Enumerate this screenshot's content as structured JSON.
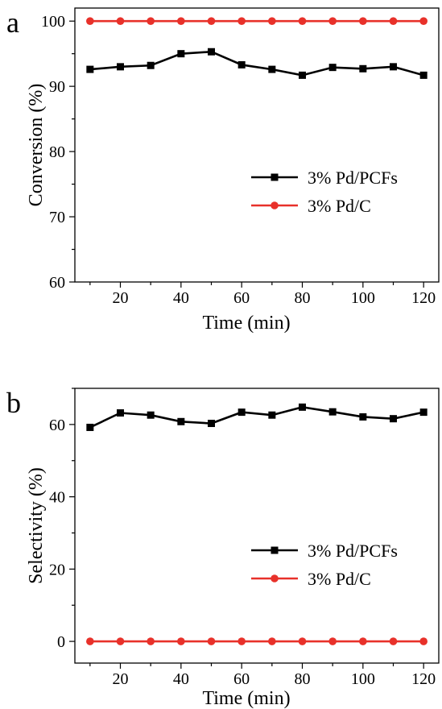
{
  "chart_data": [
    {
      "panel": "a",
      "type": "line",
      "xlabel": "Time (min)",
      "ylabel": "Conversion (%)",
      "xlim": [
        5,
        125
      ],
      "ylim": [
        60,
        102
      ],
      "xticks": [
        20,
        40,
        60,
        80,
        100,
        120
      ],
      "yticks": [
        60,
        70,
        80,
        90,
        100
      ],
      "x": [
        10,
        20,
        30,
        40,
        50,
        60,
        70,
        80,
        90,
        100,
        110,
        120
      ],
      "series": [
        {
          "name": "3% Pd/PCFs",
          "color": "#000000",
          "marker": "square",
          "values": [
            92.6,
            93.0,
            93.2,
            95.0,
            95.3,
            93.3,
            92.6,
            91.7,
            92.9,
            92.7,
            93.0,
            91.7
          ]
        },
        {
          "name": "3% Pd/C",
          "color": "#e8312a",
          "marker": "circle",
          "values": [
            100,
            100,
            100,
            100,
            100,
            100,
            100,
            100,
            100,
            100,
            100,
            100
          ]
        }
      ],
      "legend": "center-right",
      "grid": false
    },
    {
      "panel": "b",
      "type": "line",
      "xlabel": "Time (min)",
      "ylabel": "Selectivity (%)",
      "xlim": [
        5,
        125
      ],
      "ylim": [
        -6,
        70
      ],
      "xticks": [
        20,
        40,
        60,
        80,
        100,
        120
      ],
      "yticks": [
        0,
        20,
        40,
        60
      ],
      "x": [
        10,
        20,
        30,
        40,
        50,
        60,
        70,
        80,
        90,
        100,
        110,
        120
      ],
      "series": [
        {
          "name": "3% Pd/PCFs",
          "color": "#000000",
          "marker": "square",
          "values": [
            59.2,
            63.2,
            62.6,
            60.8,
            60.3,
            63.4,
            62.6,
            64.8,
            63.5,
            62.1,
            61.6,
            63.4
          ]
        },
        {
          "name": "3% Pd/C",
          "color": "#e8312a",
          "marker": "circle",
          "values": [
            0,
            0,
            0,
            0,
            0,
            0,
            0,
            0,
            0,
            0,
            0,
            0
          ]
        }
      ],
      "legend": "lower-right",
      "grid": false
    }
  ]
}
